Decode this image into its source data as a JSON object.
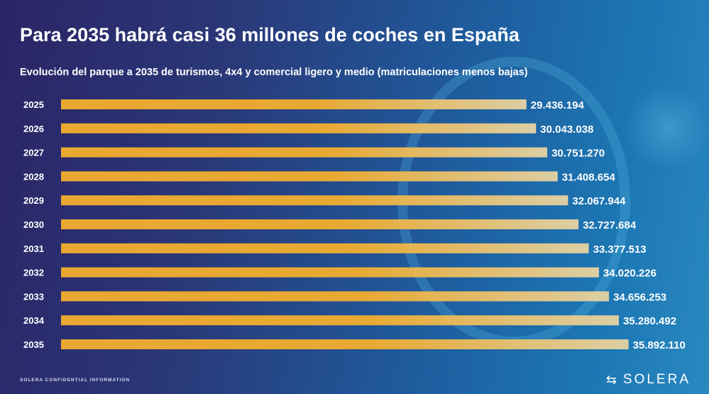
{
  "header": {
    "title": "Para 2035 habrá casi 36 millones de coches en España"
  },
  "chart_data": {
    "type": "bar",
    "orientation": "horizontal",
    "title": "Para 2035 habrá casi 36 millones de coches en España",
    "subtitle": "Evolución del parque a 2035 de turismos, 4x4 y comercial ligero y medio (matriculaciones menos bajas)",
    "categories": [
      "2025",
      "2026",
      "2027",
      "2028",
      "2029",
      "2030",
      "2031",
      "2032",
      "2033",
      "2034",
      "2035"
    ],
    "values": [
      29436194,
      30043038,
      30751270,
      31408654,
      32067944,
      32727684,
      33377513,
      34020226,
      34656253,
      35280492,
      35892110
    ],
    "data_labels": [
      "29.436.194",
      "30.043.038",
      "30.751.270",
      "31.408.654",
      "32.067.944",
      "32.727.684",
      "33.377.513",
      "34.020.226",
      "34.656.253",
      "35.280.492",
      "35.892.110"
    ],
    "xlim": [
      0,
      36000000
    ],
    "grid": false,
    "bar_color_start": "#f2ae2e",
    "bar_color_end": "#e6d3a4"
  },
  "footer": {
    "confidential": "SOLERA CONFIDENTIAL INFORMATION",
    "logo": "SOLERA"
  }
}
